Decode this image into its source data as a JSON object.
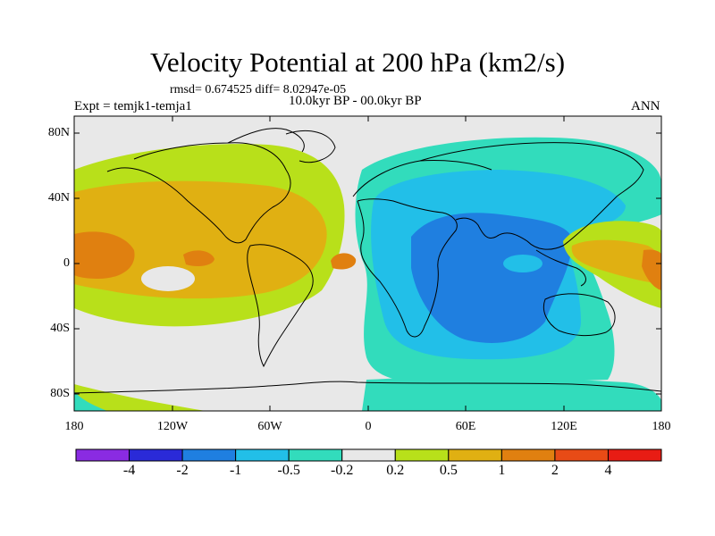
{
  "title": "Velocity Potential at 200 hPa (km2/s)",
  "stats": "rmsd= 0.674525 diff= 8.02947e-05",
  "experiment": "Expt = temjk1-temja1",
  "period": "10.0kyr BP - 00.0kyr BP",
  "season": "ANN",
  "lat_labels": [
    "80N",
    "40N",
    "0",
    "40S",
    "80S"
  ],
  "lon_labels": [
    "180",
    "120W",
    "60W",
    "0",
    "60E",
    "120E",
    "180"
  ],
  "colorbar": {
    "colors": [
      "#8a2be2",
      "#2a2ad8",
      "#1f7fe0",
      "#22bfe8",
      "#32dcbc",
      "#e8e8e8",
      "#b8e01a",
      "#e0b012",
      "#e08010",
      "#e84b16",
      "#e81c14"
    ],
    "labels": [
      "-4",
      "-2",
      "-1",
      "-0.5",
      "-0.2",
      "0.2",
      "0.5",
      "1",
      "2",
      "4"
    ]
  }
}
